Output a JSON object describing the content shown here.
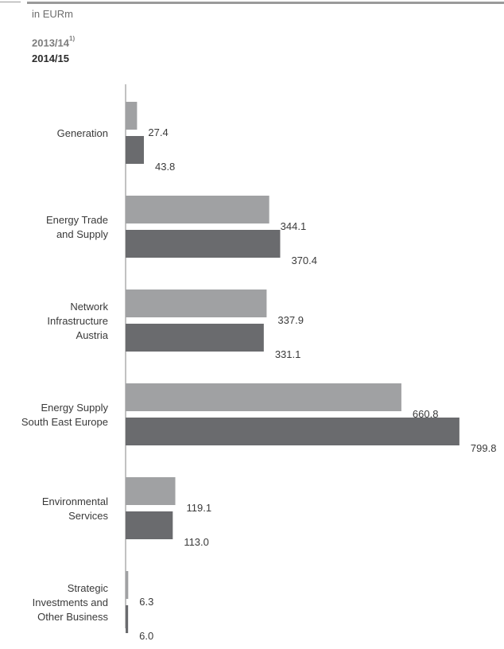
{
  "header": {
    "unit": "in EURm",
    "legend_prev_label": "2013/14",
    "legend_prev_footnote": "1)",
    "legend_curr_label": "2014/15"
  },
  "colors": {
    "prev": "#a0a1a3",
    "curr": "#6a6b6e",
    "axis": "#9a9a9a",
    "rule": "#9a9a9a"
  },
  "chart_data": {
    "type": "bar",
    "orientation": "horizontal",
    "title": "",
    "xlabel": "",
    "ylabel": "",
    "unit": "in EURm",
    "xlim": [
      0,
      800
    ],
    "categories": [
      [
        "Generation"
      ],
      [
        "Energy Trade",
        "and Supply"
      ],
      [
        "Network",
        "Infrastructure",
        "Austria"
      ],
      [
        "Energy Supply",
        "South East Europe"
      ],
      [
        "Environmental",
        "Services"
      ],
      [
        "Strategic",
        "Investments and",
        "Other Business"
      ]
    ],
    "series": [
      {
        "name": "2013/14",
        "values": [
          27.4,
          344.1,
          337.9,
          660.8,
          119.1,
          6.3
        ],
        "labels": [
          "27.4",
          "344.1",
          "337.9",
          "660.8",
          "119.1",
          "6.3"
        ]
      },
      {
        "name": "2014/15",
        "values": [
          43.8,
          370.4,
          331.1,
          799.8,
          113.0,
          6.0
        ],
        "labels": [
          "43.8",
          "370.4",
          "331.1",
          "799.8",
          "113.0",
          "6.0"
        ]
      }
    ],
    "legend": "top-left",
    "grid": false
  }
}
